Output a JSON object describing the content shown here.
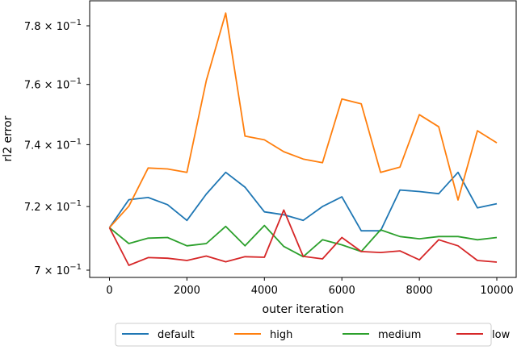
{
  "chart_data": {
    "type": "line",
    "title": "",
    "xlabel": "outer iteration",
    "ylabel": "rl2 error",
    "yscale": "log",
    "xlim": [
      -500,
      10500
    ],
    "ylim": [
      0.6975,
      0.7885
    ],
    "grid": false,
    "legend_position": "below, horizontal",
    "x": [
      0,
      500,
      1000,
      1500,
      2000,
      2500,
      3000,
      3500,
      4000,
      4500,
      5000,
      5500,
      6000,
      6500,
      7000,
      7500,
      8000,
      8500,
      9000,
      9500,
      10000
    ],
    "x_ticks": [
      0,
      2000,
      4000,
      6000,
      8000,
      10000
    ],
    "x_tick_labels": [
      "0",
      "2000",
      "4000",
      "6000",
      "8000",
      "10000"
    ],
    "y_ticks": [
      0.7,
      0.72,
      0.74,
      0.76,
      0.78
    ],
    "y_tick_labels": [
      {
        "mant": "7",
        "exp": "−1"
      },
      {
        "mant": "7.2",
        "exp": "−1"
      },
      {
        "mant": "7.4",
        "exp": "−1"
      },
      {
        "mant": "7.6",
        "exp": "−1"
      },
      {
        "mant": "7.8",
        "exp": "−1"
      }
    ],
    "series": [
      {
        "name": "default",
        "color": "#1f77b4",
        "values": [
          0.7133,
          0.7222,
          0.7229,
          0.7206,
          0.7156,
          0.724,
          0.731,
          0.7262,
          0.7183,
          0.7174,
          0.7156,
          0.72,
          0.7231,
          0.7123,
          0.7123,
          0.7253,
          0.7248,
          0.7241,
          0.731,
          0.7196,
          0.7209
        ]
      },
      {
        "name": "high",
        "color": "#ff7f0e",
        "values": [
          0.7133,
          0.7201,
          0.7324,
          0.7321,
          0.731,
          0.7613,
          0.7844,
          0.7428,
          0.7416,
          0.7377,
          0.7353,
          0.7341,
          0.7551,
          0.7535,
          0.731,
          0.7327,
          0.7499,
          0.7459,
          0.7221,
          0.7446,
          0.7406
        ]
      },
      {
        "name": "medium",
        "color": "#2ca02c",
        "values": [
          0.7133,
          0.7083,
          0.71,
          0.7102,
          0.7076,
          0.7083,
          0.7137,
          0.7076,
          0.714,
          0.7074,
          0.7042,
          0.7095,
          0.7079,
          0.7058,
          0.7126,
          0.7105,
          0.7098,
          0.7105,
          0.7105,
          0.7095,
          0.7102
        ]
      },
      {
        "name": "low",
        "color": "#d62728",
        "values": [
          0.7133,
          0.7015,
          0.7039,
          0.7037,
          0.703,
          0.7044,
          0.7026,
          0.7042,
          0.704,
          0.7189,
          0.7043,
          0.7035,
          0.7102,
          0.7058,
          0.7055,
          0.706,
          0.7032,
          0.7095,
          0.7076,
          0.703,
          0.7025
        ]
      }
    ]
  },
  "axes": {
    "xlabel": "outer iteration",
    "ylabel": "rl2 error",
    "tick_base": "× 10"
  },
  "legend": {
    "items": [
      {
        "label": "default",
        "color": "#1f77b4"
      },
      {
        "label": "high",
        "color": "#ff7f0e"
      },
      {
        "label": "medium",
        "color": "#2ca02c"
      },
      {
        "label": "low",
        "color": "#d62728"
      }
    ]
  }
}
